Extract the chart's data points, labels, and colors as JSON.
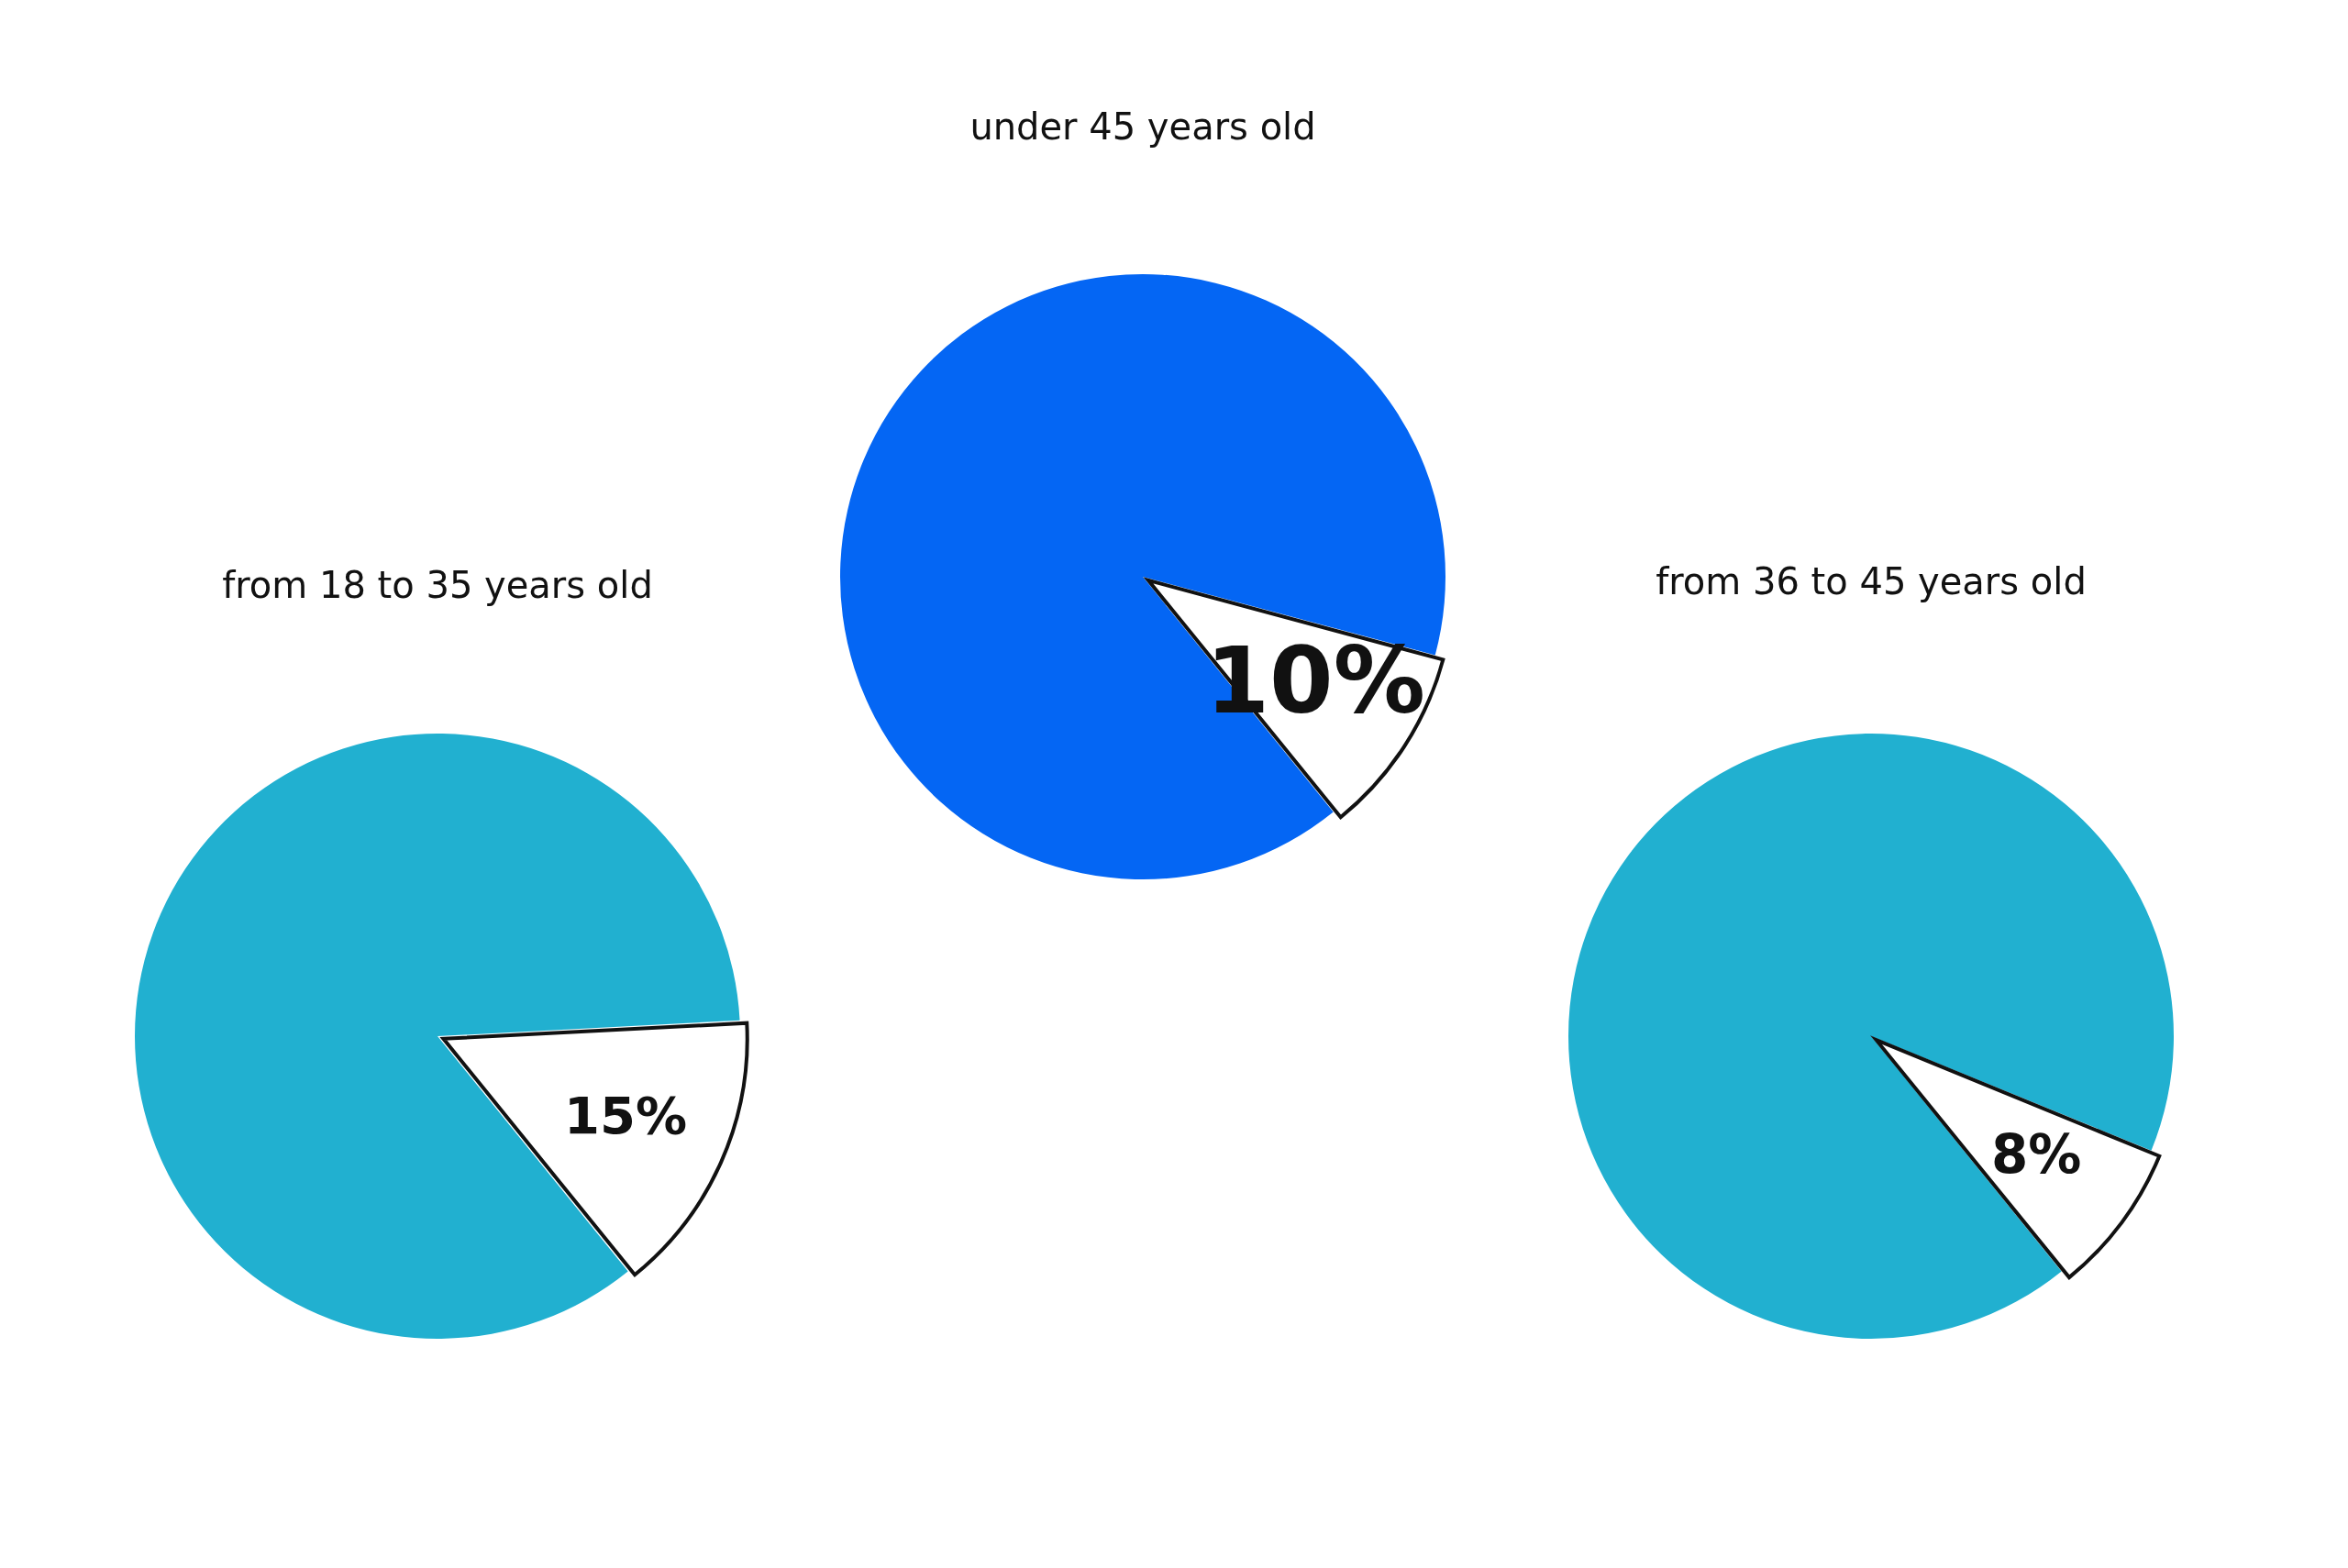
{
  "chart_data": [
    {
      "type": "pie",
      "title": "from 18 to 35 years old",
      "categories": [
        null,
        null
      ],
      "values": [
        85,
        15
      ],
      "colors": [
        "#21b0d0",
        "#ffffff"
      ],
      "value_labels": [
        null,
        "15%"
      ],
      "legend": false
    },
    {
      "type": "pie",
      "title": "under 45 years old",
      "categories": [
        null,
        null
      ],
      "values": [
        90,
        10
      ],
      "colors": [
        "#0466f4",
        "#ffffff"
      ],
      "value_labels": [
        null,
        "10%"
      ],
      "legend": false
    },
    {
      "type": "pie",
      "title": "from 36 to 45 years old",
      "categories": [
        null,
        null
      ],
      "values": [
        92,
        8
      ],
      "colors": [
        "#21b0d0",
        "#ffffff"
      ],
      "value_labels": [
        null,
        "8%"
      ],
      "legend": false
    }
  ]
}
